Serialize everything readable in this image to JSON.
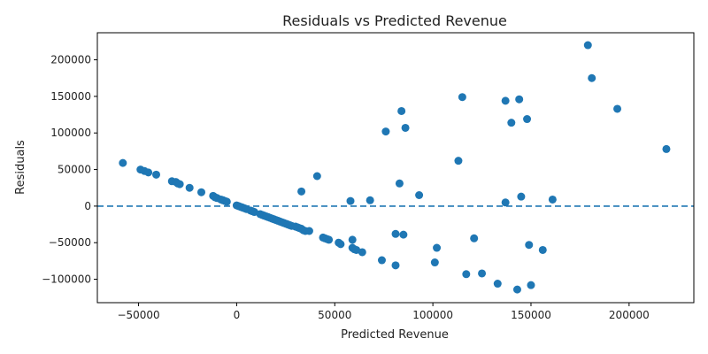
{
  "chart_data": {
    "type": "scatter",
    "title": "Residuals vs Predicted Revenue",
    "xlabel": "Predicted Revenue",
    "ylabel": "Residuals",
    "xlim": [
      -71000,
      233000
    ],
    "ylim": [
      -132000,
      237000
    ],
    "xticks": [
      -50000,
      0,
      50000,
      100000,
      150000,
      200000
    ],
    "yticks": [
      -100000,
      -50000,
      0,
      50000,
      100000,
      150000,
      200000
    ],
    "xtick_labels": [
      "−50000",
      "0",
      "50000",
      "100000",
      "150000",
      "200000"
    ],
    "ytick_labels": [
      "−100000",
      "−50000",
      "0",
      "50000",
      "100000",
      "150000",
      "200000"
    ],
    "reference_line": {
      "y": 0,
      "style": "dashed",
      "color": "#1f77b4"
    },
    "grid": false,
    "marker_color": "#1f77b4",
    "series": [
      {
        "points": [
          [
            -58000,
            59000
          ],
          [
            -49000,
            50000
          ],
          [
            -47000,
            48000
          ],
          [
            -45000,
            46000
          ],
          [
            -41000,
            43000
          ],
          [
            -33000,
            34000
          ],
          [
            -31000,
            33000
          ],
          [
            -30000,
            31000
          ],
          [
            -29000,
            30000
          ],
          [
            -24000,
            25000
          ],
          [
            -18000,
            19000
          ],
          [
            -12000,
            14000
          ],
          [
            -11000,
            12000
          ],
          [
            -10000,
            11000
          ],
          [
            -8000,
            9000
          ],
          [
            -7000,
            8000
          ],
          [
            -6000,
            7000
          ],
          [
            -5000,
            6000
          ],
          [
            0,
            1000
          ],
          [
            1000,
            0
          ],
          [
            2000,
            -1000
          ],
          [
            3000,
            -2000
          ],
          [
            4000,
            -3000
          ],
          [
            5000,
            -4000
          ],
          [
            7000,
            -6000
          ],
          [
            8000,
            -7000
          ],
          [
            9000,
            -8000
          ],
          [
            12000,
            -11000
          ],
          [
            13000,
            -12000
          ],
          [
            14000,
            -13000
          ],
          [
            15000,
            -14000
          ],
          [
            16000,
            -15000
          ],
          [
            17000,
            -16000
          ],
          [
            18000,
            -17000
          ],
          [
            19000,
            -18000
          ],
          [
            20000,
            -19000
          ],
          [
            21000,
            -20000
          ],
          [
            22000,
            -21000
          ],
          [
            23000,
            -22000
          ],
          [
            24000,
            -23000
          ],
          [
            25000,
            -24000
          ],
          [
            26000,
            -25000
          ],
          [
            27000,
            -26000
          ],
          [
            28000,
            -27000
          ],
          [
            30000,
            -28000
          ],
          [
            31000,
            -29000
          ],
          [
            32000,
            -30000
          ],
          [
            33000,
            -31000
          ],
          [
            34000,
            -33000
          ],
          [
            35000,
            -34000
          ],
          [
            37000,
            -34000
          ],
          [
            44000,
            -43000
          ],
          [
            45000,
            -44000
          ],
          [
            46000,
            -45000
          ],
          [
            47000,
            -46000
          ],
          [
            52000,
            -50000
          ],
          [
            53000,
            -52000
          ],
          [
            59000,
            -46000
          ],
          [
            59000,
            -57000
          ],
          [
            60000,
            -59000
          ],
          [
            61000,
            -60000
          ],
          [
            64000,
            -63000
          ],
          [
            74000,
            -74000
          ],
          [
            81000,
            -81000
          ],
          [
            81000,
            -38000
          ],
          [
            85000,
            -39000
          ],
          [
            101000,
            -77000
          ],
          [
            102000,
            -57000
          ],
          [
            117000,
            -93000
          ],
          [
            121000,
            -44000
          ],
          [
            125000,
            -92000
          ],
          [
            133000,
            -106000
          ],
          [
            143000,
            -114000
          ],
          [
            149000,
            -53000
          ],
          [
            150000,
            -108000
          ],
          [
            156000,
            -60000
          ],
          [
            33000,
            20000
          ],
          [
            41000,
            41000
          ],
          [
            58000,
            7000
          ],
          [
            68000,
            8000
          ],
          [
            83000,
            31000
          ],
          [
            93000,
            15000
          ],
          [
            137000,
            5000
          ],
          [
            145000,
            13000
          ],
          [
            161000,
            9000
          ],
          [
            76000,
            102000
          ],
          [
            84000,
            130000
          ],
          [
            86000,
            107000
          ],
          [
            113000,
            62000
          ],
          [
            115000,
            149000
          ],
          [
            137000,
            144000
          ],
          [
            140000,
            114000
          ],
          [
            144000,
            146000
          ],
          [
            148000,
            119000
          ],
          [
            179000,
            220000
          ],
          [
            181000,
            175000
          ],
          [
            194000,
            133000
          ],
          [
            219000,
            78000
          ]
        ]
      }
    ]
  }
}
